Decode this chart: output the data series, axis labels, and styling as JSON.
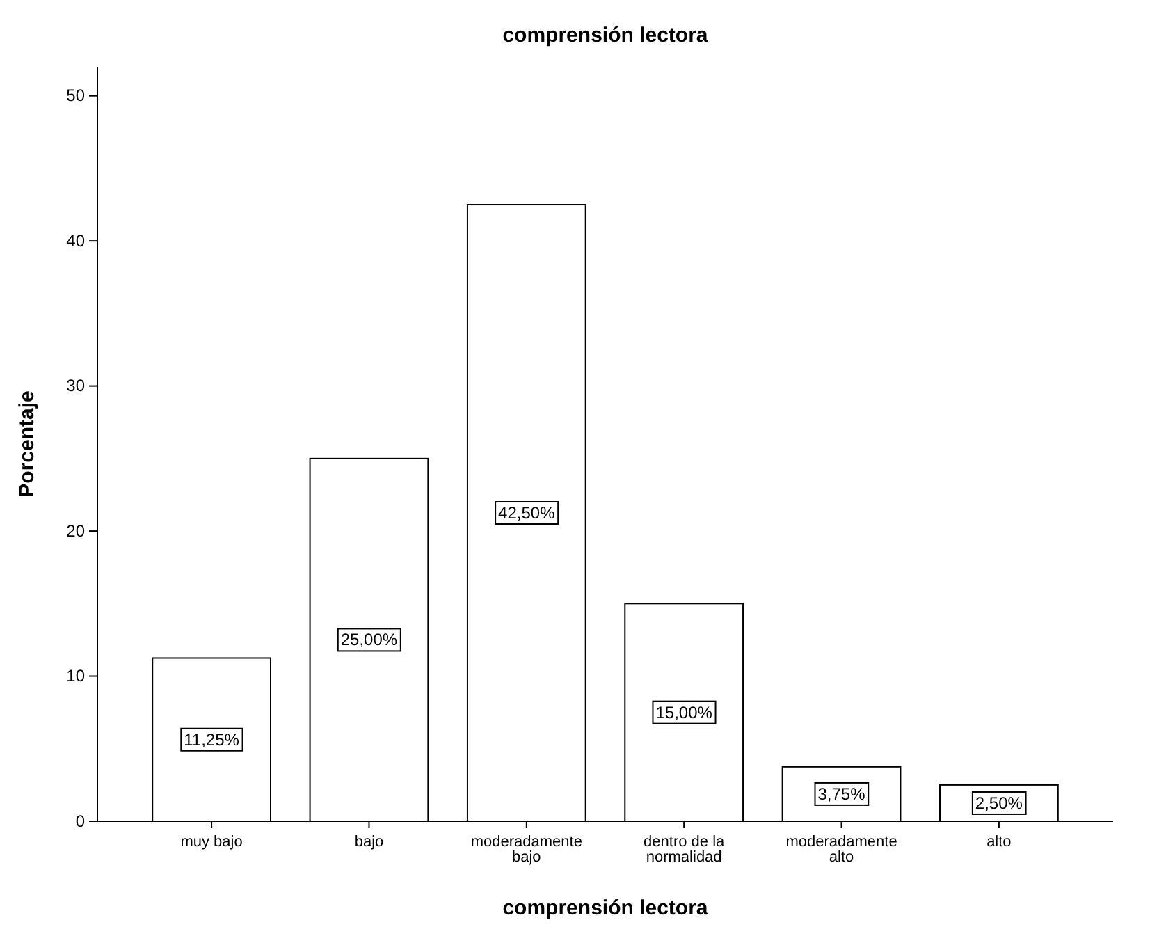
{
  "chart_data": {
    "type": "bar",
    "title": "comprensión lectora",
    "xlabel": "comprensión lectora",
    "ylabel": "Porcentaje",
    "categories": [
      "muy bajo",
      "bajo",
      "moderadamente bajo",
      "dentro de la normalidad",
      "moderadamente alto",
      "alto"
    ],
    "values": [
      11.25,
      25,
      42.5,
      15,
      3.75,
      2.5
    ],
    "value_labels": [
      "11,25%",
      "25,00%",
      "42,50%",
      "15,00%",
      "3,75%",
      "2,50%"
    ],
    "color": "#ffffff",
    "ylim": [
      0,
      52
    ],
    "yticks": [
      0,
      10,
      20,
      30,
      40,
      50
    ],
    "grid": false
  }
}
